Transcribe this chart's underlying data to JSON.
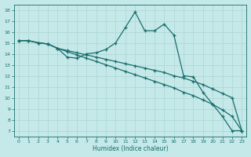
{
  "xlabel": "Humidex (Indice chaleur)",
  "bg_color": "#c5e8e8",
  "grid_color": "#b0d8d8",
  "line_color": "#1a6e6e",
  "xlim": [
    -0.5,
    23.5
  ],
  "ylim": [
    6.5,
    18.5
  ],
  "yticks": [
    7,
    8,
    9,
    10,
    11,
    12,
    13,
    14,
    15,
    16,
    17,
    18
  ],
  "xticks": [
    0,
    1,
    2,
    3,
    4,
    5,
    6,
    7,
    8,
    9,
    10,
    11,
    12,
    13,
    14,
    15,
    16,
    17,
    18,
    19,
    20,
    21,
    22,
    23
  ],
  "line1_y": [
    15.2,
    15.2,
    15.0,
    14.9,
    14.5,
    13.7,
    13.6,
    14.0,
    14.1,
    14.4,
    15.0,
    16.4,
    17.8,
    16.1,
    16.1,
    16.7,
    15.7,
    12.0,
    11.9,
    10.5,
    9.4,
    8.3,
    7.0,
    7.0
  ],
  "line2_y": [
    15.2,
    15.2,
    15.0,
    14.9,
    14.5,
    14.3,
    14.1,
    13.9,
    13.7,
    13.5,
    13.3,
    13.1,
    12.9,
    12.7,
    12.5,
    12.3,
    12.0,
    11.8,
    11.5,
    11.2,
    10.8,
    10.4,
    10.0,
    7.0
  ],
  "line3_y": [
    15.2,
    15.2,
    15.0,
    14.9,
    14.5,
    14.2,
    13.9,
    13.6,
    13.3,
    13.0,
    12.7,
    12.4,
    12.1,
    11.8,
    11.5,
    11.2,
    10.9,
    10.5,
    10.2,
    9.8,
    9.4,
    8.9,
    8.3,
    7.0
  ]
}
